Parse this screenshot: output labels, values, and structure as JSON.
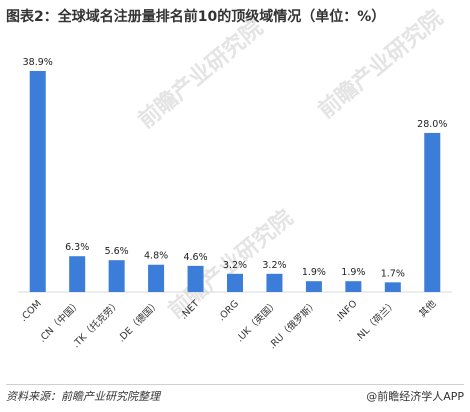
{
  "title": "图表2：全球域名注册量排名前10的顶级域情况（单位：%）",
  "chart_data": {
    "type": "bar",
    "categories": [
      ".COM",
      ".CN（中国）",
      ".TK（托克劳）",
      ".DE（德国）",
      ".NET",
      ".ORG",
      ".UK（英国）",
      ".RU（俄罗斯）",
      ".INFO",
      ".NL（荷兰）",
      "其他"
    ],
    "values": [
      38.9,
      6.3,
      5.6,
      4.8,
      4.6,
      3.2,
      3.2,
      1.9,
      1.9,
      1.7,
      28.0
    ],
    "data_labels": [
      "38.9%",
      "6.3%",
      "5.6%",
      "4.8%",
      "4.6%",
      "3.2%",
      "3.2%",
      "1.9%",
      "1.9%",
      "1.7%",
      "28.0%"
    ],
    "ylim": [
      0,
      38.9
    ],
    "bar_color": "#3b7dd8",
    "grid": false,
    "legend": "none"
  },
  "footer": {
    "source": "资料来源：前瞻产业研究院整理",
    "brand": "@前瞻经济学人APP"
  },
  "watermarks": [
    "前瞻产业研究院",
    "前瞻产业研究院",
    "前瞻产业研究院"
  ]
}
